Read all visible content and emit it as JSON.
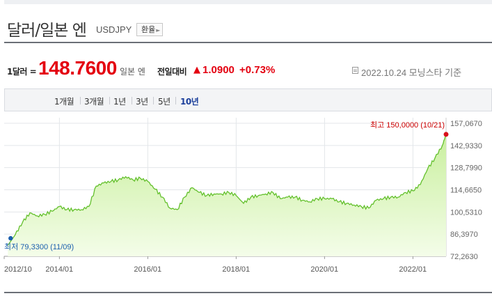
{
  "header": {
    "title": "달러/일본 엔",
    "code": "USDJPY",
    "fx_button": "환율"
  },
  "quote": {
    "unit_label": "1달러 =",
    "price": "148.7600",
    "price_unit": "일본 엔",
    "compare_label": "전일대비",
    "change": "1.0900",
    "change_pct": "+0.73%",
    "source": "2022.10.24 모닝스타 기준"
  },
  "periods": [
    "1개월",
    "3개월",
    "1년",
    "3년",
    "5년",
    "10년"
  ],
  "selected_period": "10년",
  "colors": {
    "up": "#e40010",
    "line": "#63c02c",
    "fill_top": "#c9ef9e",
    "fill_bottom": "#f4fde9",
    "low": "#1b5fae",
    "selected": "#1b3f9b"
  },
  "chart_data": {
    "type": "area",
    "ylim": [
      72.263,
      157.067
    ],
    "y_ticks": [
      "157,0670",
      "142,9330",
      "128,7990",
      "114,6650",
      "100,5310",
      "86,3970",
      "72,2630"
    ],
    "x_ticks": [
      "2012/10",
      "2014/01",
      "2016/01",
      "2018/01",
      "2020/01",
      "2022/01"
    ],
    "x": [
      "2012/11",
      "2013/01",
      "2013/03",
      "2013/05",
      "2013/07",
      "2013/09",
      "2013/11",
      "2014/01",
      "2014/03",
      "2014/05",
      "2014/07",
      "2014/09",
      "2014/11",
      "2015/01",
      "2015/03",
      "2015/05",
      "2015/07",
      "2015/09",
      "2015/11",
      "2016/01",
      "2016/03",
      "2016/05",
      "2016/07",
      "2016/09",
      "2016/11",
      "2017/01",
      "2017/03",
      "2017/05",
      "2017/07",
      "2017/09",
      "2017/11",
      "2018/01",
      "2018/03",
      "2018/05",
      "2018/07",
      "2018/09",
      "2018/11",
      "2019/01",
      "2019/03",
      "2019/05",
      "2019/07",
      "2019/09",
      "2019/11",
      "2020/01",
      "2020/03",
      "2020/05",
      "2020/07",
      "2020/09",
      "2020/11",
      "2021/01",
      "2021/03",
      "2021/05",
      "2021/07",
      "2021/09",
      "2021/11",
      "2022/01",
      "2022/03",
      "2022/05",
      "2022/07",
      "2022/09",
      "2022/10"
    ],
    "values": [
      79.33,
      86,
      94,
      100,
      98,
      99,
      101,
      104,
      102,
      102,
      102,
      104,
      117,
      119,
      120,
      121,
      123,
      121,
      122,
      120,
      115,
      110,
      103,
      102,
      110,
      116,
      113,
      111,
      112,
      112,
      113,
      111,
      106,
      110,
      111,
      112,
      113,
      109,
      110,
      110,
      108,
      107,
      109,
      109,
      109,
      107,
      106,
      105,
      104,
      103,
      108,
      109,
      110,
      110,
      113,
      114,
      118,
      128,
      135,
      143,
      150
    ],
    "max_label": "최고 150,0000 (10/21)",
    "min_label": "최저  79,3300 (11/09)"
  }
}
